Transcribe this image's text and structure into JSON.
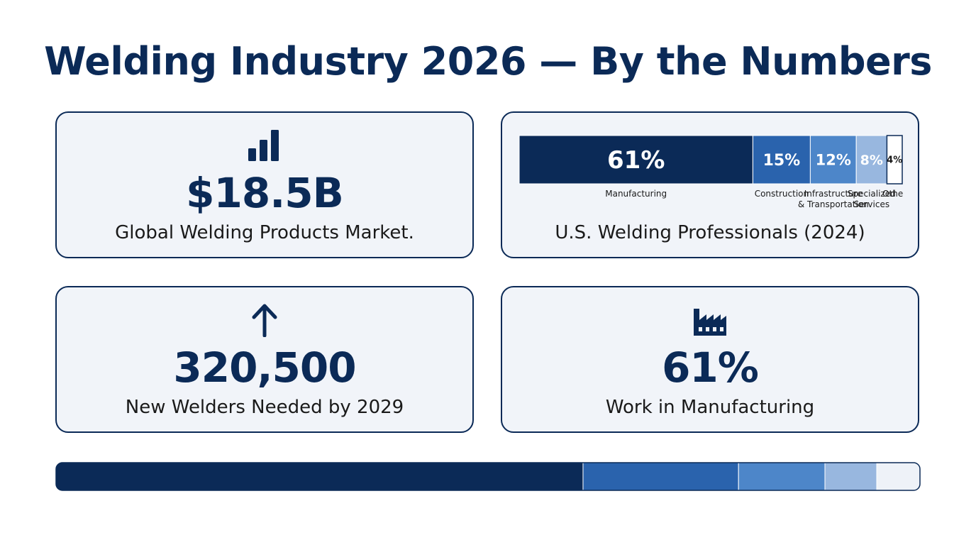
{
  "page": {
    "title": "Welding Industry 2026 — By the Numbers"
  },
  "cards": {
    "market": {
      "icon": "bar-chart-icon",
      "value": "$18.5B",
      "caption": "Global Welding Products Market."
    },
    "split": {
      "caption": "U.S. Welding Professionals (2024)"
    },
    "new_welders": {
      "icon": "arrow-up-icon",
      "value": "320,500",
      "caption": "New Welders Needed by 2029"
    },
    "manufacturing": {
      "icon": "factory-icon",
      "value": "61%",
      "caption": "Work in Manufacturing"
    }
  },
  "chart_data": [
    {
      "type": "bar",
      "orientation": "horizontal-stacked",
      "categories": [
        "Manufacturing",
        "Construction",
        "Infrastructure & Transportation",
        "Specialized Services",
        "Other"
      ],
      "values": [
        61,
        15,
        12,
        8,
        4
      ],
      "value_labels": [
        "61%",
        "15%",
        "12%",
        "8%",
        "4%"
      ],
      "colors": [
        "#0b2a57",
        "#2a63ad",
        "#4d86c9",
        "#98b7df",
        "#ffffff"
      ],
      "label_colors": [
        "#ffffff",
        "#ffffff",
        "#ffffff",
        "#ffffff",
        "#1a1a1a"
      ],
      "xlim": [
        0,
        100
      ]
    },
    {
      "type": "bar",
      "orientation": "horizontal-stacked",
      "values": [
        61,
        18,
        10,
        6,
        5
      ],
      "colors": [
        "#0b2a57",
        "#2a63ad",
        "#4d86c9",
        "#98b7df",
        "#eef2f8"
      ],
      "xlim": [
        0,
        100
      ]
    }
  ]
}
